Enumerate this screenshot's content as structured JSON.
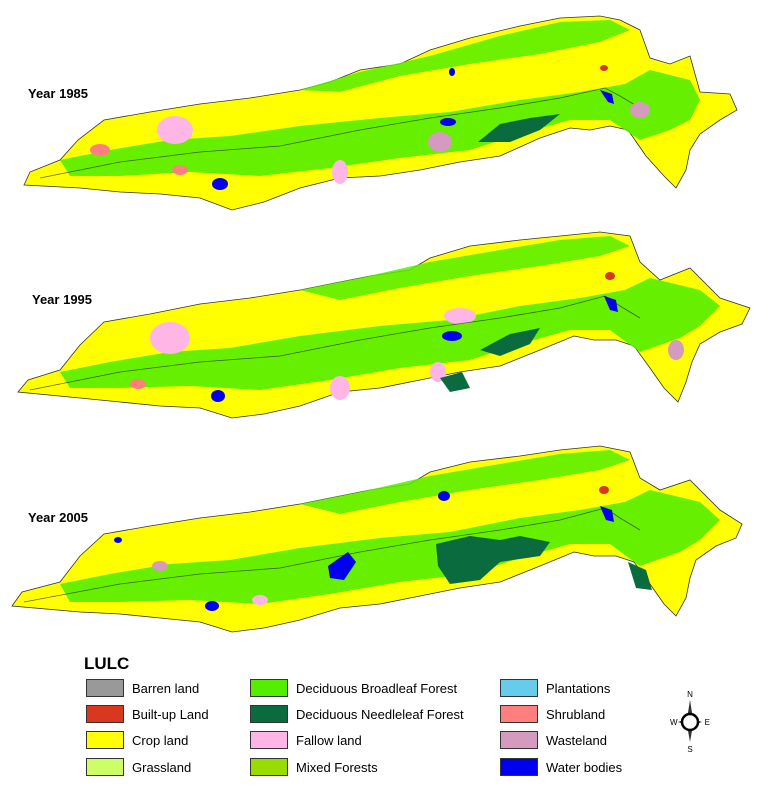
{
  "panels": [
    {
      "label": "Year 1985"
    },
    {
      "label": "Year 1995"
    },
    {
      "label": "Year 2005"
    }
  ],
  "legend": {
    "title": "LULC",
    "items": [
      {
        "label": "Barren land",
        "color": "#999999"
      },
      {
        "label": "Built-up Land",
        "color": "#d9381e"
      },
      {
        "label": "Crop land",
        "color": "#ffff00"
      },
      {
        "label": "Grassland",
        "color": "#ccff66"
      },
      {
        "label": "Deciduous Broadleaf Forest",
        "color": "#55ee00"
      },
      {
        "label": "Deciduous Needleleaf Forest",
        "color": "#0a6b3f"
      },
      {
        "label": "Fallow land",
        "color": "#ffb6e6"
      },
      {
        "label": "Mixed Forests",
        "color": "#99dd00"
      },
      {
        "label": "Plantations",
        "color": "#66ccee"
      },
      {
        "label": "Shrubland",
        "color": "#ff7f7f"
      },
      {
        "label": "Wasteland",
        "color": "#d49bbf"
      },
      {
        "label": "Water bodies",
        "color": "#0000ee"
      }
    ]
  },
  "compass": {
    "n": "N",
    "s": "S",
    "e": "E",
    "w": "W"
  }
}
